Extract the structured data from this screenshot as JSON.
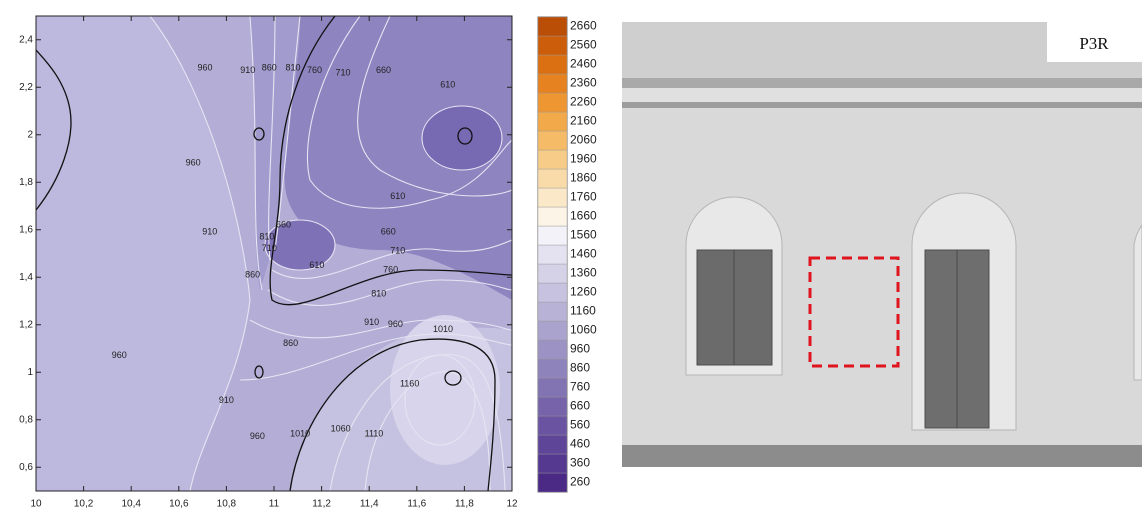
{
  "chart_data": {
    "type": "contour",
    "xlim": [
      10,
      12
    ],
    "ylim": [
      0.5,
      2.5
    ],
    "xticks": [
      10,
      {
        "value": 10.2,
        "label": "10,2"
      },
      {
        "value": 10.4,
        "label": "10,4"
      },
      {
        "value": 10.6,
        "label": "10,6"
      },
      {
        "value": 10.8,
        "label": "10,8"
      },
      11,
      {
        "value": 11.2,
        "label": "11,2"
      },
      {
        "value": 11.4,
        "label": "11,4"
      },
      {
        "value": 11.6,
        "label": "11,6"
      },
      {
        "value": 11.8,
        "label": "11,8"
      },
      12
    ],
    "yticks": [
      {
        "value": 0.6,
        "label": "0,6"
      },
      {
        "value": 0.8,
        "label": "0,8"
      },
      1,
      {
        "value": 1.2,
        "label": "1,2"
      },
      {
        "value": 1.4,
        "label": "1,4"
      },
      {
        "value": 1.6,
        "label": "1,6"
      },
      {
        "value": 1.8,
        "label": "1,8"
      },
      2,
      {
        "value": 2.2,
        "label": "2,2"
      },
      {
        "value": 2.4,
        "label": "2,4"
      }
    ],
    "contour_labels": [
      {
        "value": 960,
        "x": 10.71,
        "y": 2.28
      },
      {
        "value": 910,
        "x": 10.89,
        "y": 2.27
      },
      {
        "value": 860,
        "x": 10.98,
        "y": 2.28
      },
      {
        "value": 810,
        "x": 11.08,
        "y": 2.28
      },
      {
        "value": 760,
        "x": 11.17,
        "y": 2.27
      },
      {
        "value": 710,
        "x": 11.29,
        "y": 2.26
      },
      {
        "value": 660,
        "x": 11.46,
        "y": 2.27
      },
      {
        "value": 610,
        "x": 11.73,
        "y": 2.21
      },
      {
        "value": 960,
        "x": 10.66,
        "y": 1.88
      },
      {
        "value": 610,
        "x": 11.52,
        "y": 1.74
      },
      {
        "value": 910,
        "x": 10.73,
        "y": 1.59
      },
      {
        "value": 660,
        "x": 11.04,
        "y": 1.62
      },
      {
        "value": 810,
        "x": 10.97,
        "y": 1.57
      },
      {
        "value": 710,
        "x": 10.98,
        "y": 1.52
      },
      {
        "value": 660,
        "x": 11.48,
        "y": 1.59
      },
      {
        "value": 710,
        "x": 11.52,
        "y": 1.51
      },
      {
        "value": 610,
        "x": 11.18,
        "y": 1.45
      },
      {
        "value": 760,
        "x": 11.49,
        "y": 1.43
      },
      {
        "value": 810,
        "x": 11.44,
        "y": 1.33
      },
      {
        "value": 860,
        "x": 10.91,
        "y": 1.41
      },
      {
        "value": 910,
        "x": 11.41,
        "y": 1.21
      },
      {
        "value": 960,
        "x": 11.51,
        "y": 1.2
      },
      {
        "value": 1010,
        "x": 11.71,
        "y": 1.18
      },
      {
        "value": 860,
        "x": 11.07,
        "y": 1.12
      },
      {
        "value": 960,
        "x": 10.35,
        "y": 1.07
      },
      {
        "value": 1160,
        "x": 11.57,
        "y": 0.95
      },
      {
        "value": 910,
        "x": 10.8,
        "y": 0.88
      },
      {
        "value": 960,
        "x": 10.93,
        "y": 0.73
      },
      {
        "value": 1010,
        "x": 11.11,
        "y": 0.74
      },
      {
        "value": 1060,
        "x": 11.28,
        "y": 0.76
      },
      {
        "value": 1110,
        "x": 11.42,
        "y": 0.74
      }
    ],
    "colorbar": {
      "ticks": [
        260,
        360,
        460,
        560,
        660,
        760,
        860,
        960,
        1060,
        1160,
        1260,
        1360,
        1460,
        1560,
        1660,
        1760,
        1860,
        1960,
        2060,
        2160,
        2260,
        2360,
        2460,
        2560,
        2660
      ],
      "colors": [
        "#4b2a86",
        "#55388f",
        "#5f4598",
        "#6a53a0",
        "#7663a9",
        "#8273b2",
        "#8f83bb",
        "#9c93c4",
        "#aaa3cd",
        "#b8b3d6",
        "#c6c2df",
        "#d5d2e8",
        "#e4e2f1",
        "#f3f2f8",
        "#fcf4e6",
        "#fbe8c8",
        "#f9dba9",
        "#f7cc88",
        "#f5bb67",
        "#f2a94a",
        "#ee9632",
        "#e6821f",
        "#db7012",
        "#cc5e0b",
        "#bb4e07"
      ]
    }
  },
  "photo": {
    "label": "P3R"
  }
}
